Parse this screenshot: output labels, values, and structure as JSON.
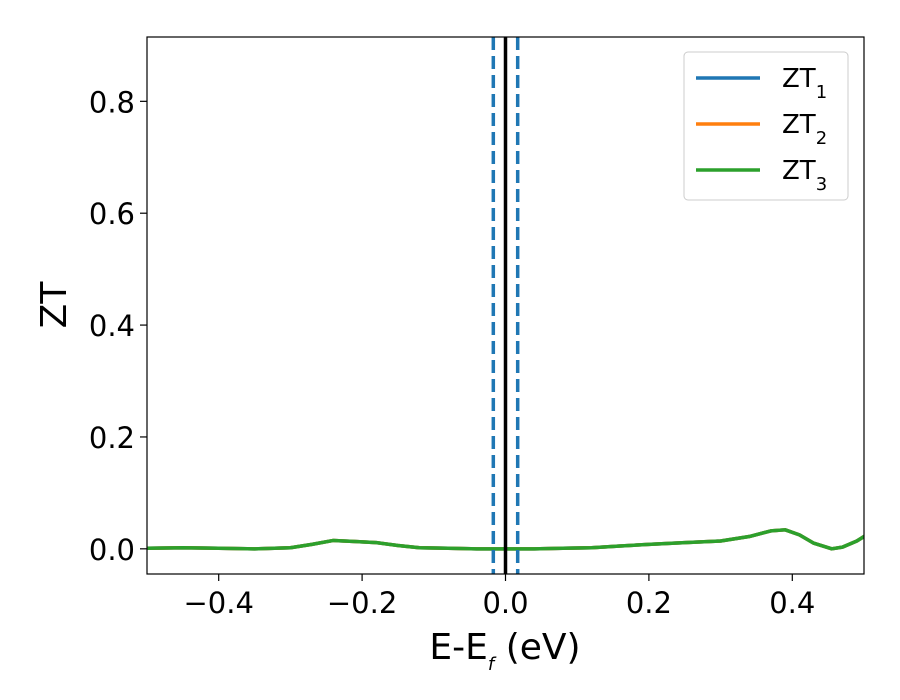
{
  "chart_data": {
    "type": "line",
    "xlabel": "E-E",
    "xlabel_sub": "f",
    "xlabel_unit": " (eV)",
    "ylabel": "ZT",
    "xlim": [
      -0.5,
      0.5
    ],
    "ylim": [
      -0.045,
      0.915
    ],
    "xticks": [
      -0.4,
      -0.2,
      0.0,
      0.2,
      0.4
    ],
    "xtick_labels": [
      "−0.4",
      "−0.2",
      "0.0",
      "0.2",
      "0.4"
    ],
    "yticks": [
      0.0,
      0.2,
      0.4,
      0.6,
      0.8
    ],
    "ytick_labels": [
      "0.0",
      "0.2",
      "0.4",
      "0.6",
      "0.8"
    ],
    "grid": false,
    "legend_position": "top-right",
    "series": [
      {
        "name": "ZT",
        "name_sub": "1",
        "color": "#1f77b4",
        "x": [
          -0.5,
          -0.45,
          -0.4,
          -0.35,
          -0.3,
          -0.27,
          -0.24,
          -0.21,
          -0.18,
          -0.15,
          -0.12,
          -0.08,
          -0.04,
          0.0,
          0.04,
          0.08,
          0.12,
          0.16,
          0.2,
          0.25,
          0.3,
          0.34,
          0.37,
          0.39,
          0.41,
          0.43,
          0.455,
          0.47,
          0.49,
          0.5
        ],
        "y": [
          0.001,
          0.002,
          0.001,
          0.0,
          0.002,
          0.008,
          0.015,
          0.013,
          0.011,
          0.006,
          0.002,
          0.001,
          0.0,
          0.0,
          0.0,
          0.001,
          0.002,
          0.005,
          0.008,
          0.011,
          0.014,
          0.022,
          0.032,
          0.034,
          0.025,
          0.01,
          0.0,
          0.003,
          0.014,
          0.022
        ]
      },
      {
        "name": "ZT",
        "name_sub": "2",
        "color": "#ff7f0e",
        "x": [
          -0.5,
          -0.45,
          -0.4,
          -0.35,
          -0.3,
          -0.27,
          -0.24,
          -0.21,
          -0.18,
          -0.15,
          -0.12,
          -0.08,
          -0.04,
          0.0,
          0.04,
          0.08,
          0.12,
          0.16,
          0.2,
          0.25,
          0.3,
          0.34,
          0.37,
          0.39,
          0.41,
          0.43,
          0.455,
          0.47,
          0.49,
          0.5
        ],
        "y": [
          0.001,
          0.002,
          0.001,
          0.0,
          0.002,
          0.008,
          0.015,
          0.013,
          0.011,
          0.006,
          0.002,
          0.001,
          0.0,
          0.0,
          0.0,
          0.001,
          0.002,
          0.005,
          0.008,
          0.011,
          0.014,
          0.022,
          0.032,
          0.034,
          0.025,
          0.01,
          0.0,
          0.003,
          0.014,
          0.022
        ]
      },
      {
        "name": "ZT",
        "name_sub": "3",
        "color": "#2ca02c",
        "x": [
          -0.5,
          -0.45,
          -0.4,
          -0.35,
          -0.3,
          -0.27,
          -0.24,
          -0.21,
          -0.18,
          -0.15,
          -0.12,
          -0.08,
          -0.04,
          0.0,
          0.04,
          0.08,
          0.12,
          0.16,
          0.2,
          0.25,
          0.3,
          0.34,
          0.37,
          0.39,
          0.41,
          0.43,
          0.455,
          0.47,
          0.49,
          0.5
        ],
        "y": [
          0.001,
          0.002,
          0.001,
          0.0,
          0.002,
          0.008,
          0.015,
          0.013,
          0.011,
          0.006,
          0.002,
          0.001,
          0.0,
          0.0,
          0.0,
          0.001,
          0.002,
          0.005,
          0.008,
          0.011,
          0.014,
          0.022,
          0.032,
          0.034,
          0.025,
          0.01,
          0.0,
          0.003,
          0.014,
          0.022
        ]
      }
    ],
    "vlines": [
      {
        "x": 0.0,
        "color": "#000000",
        "style": "solid"
      },
      {
        "x": -0.017,
        "color": "#1f77b4",
        "style": "dashed"
      },
      {
        "x": 0.017,
        "color": "#1f77b4",
        "style": "dashed"
      }
    ]
  }
}
